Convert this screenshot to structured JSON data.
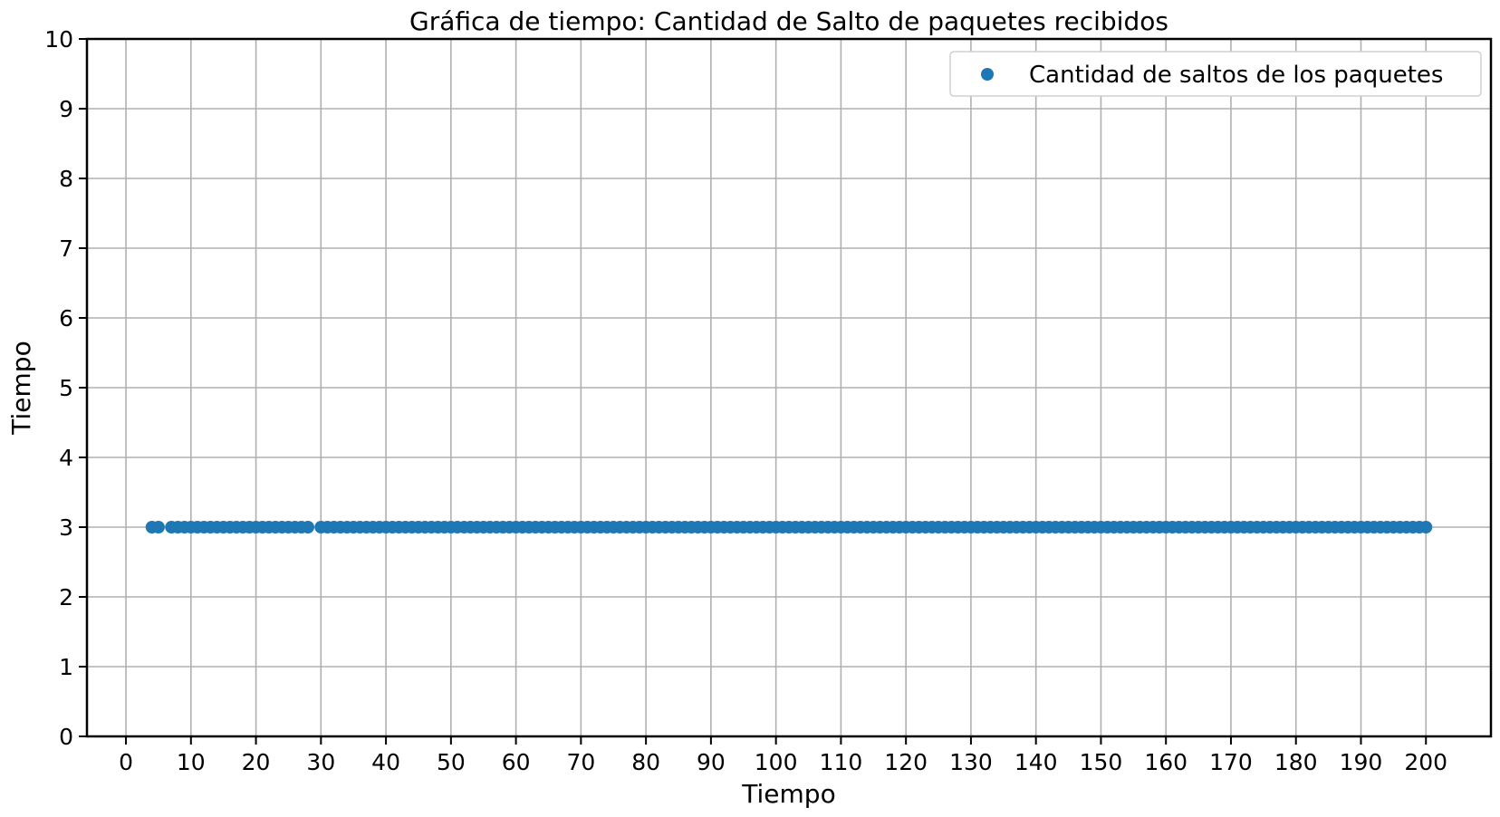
{
  "chart_data": {
    "type": "scatter",
    "title": "Gráfica de tiempo: Cantidad de Salto de paquetes recibidos",
    "xlabel": "Tiempo",
    "ylabel": "Tiempo",
    "xlim": [
      -6,
      210
    ],
    "ylim": [
      0,
      10
    ],
    "x_ticks": [
      "0",
      "10",
      "20",
      "30",
      "40",
      "50",
      "60",
      "70",
      "80",
      "90",
      "100",
      "110",
      "120",
      "130",
      "140",
      "150",
      "160",
      "170",
      "180",
      "190",
      "200"
    ],
    "y_ticks": [
      "0",
      "1",
      "2",
      "3",
      "4",
      "5",
      "6",
      "7",
      "8",
      "9",
      "10"
    ],
    "grid": true,
    "legend_position": "top-right",
    "series": [
      {
        "name": "Cantidad de saltos de los paquetes",
        "color": "#1f77b4",
        "x": [
          4,
          5,
          7,
          8,
          9,
          10,
          11,
          12,
          13,
          14,
          15,
          16,
          17,
          18,
          19,
          20,
          21,
          22,
          23,
          24,
          25,
          26,
          27,
          28,
          30,
          31,
          32,
          33,
          34,
          35,
          36,
          37,
          38,
          39,
          40,
          41,
          42,
          43,
          44,
          45,
          46,
          47,
          48,
          49,
          50,
          51,
          52,
          53,
          54,
          55,
          56,
          57,
          58,
          59,
          60,
          61,
          62,
          63,
          64,
          65,
          66,
          67,
          68,
          69,
          70,
          71,
          72,
          73,
          74,
          75,
          76,
          77,
          78,
          79,
          80,
          81,
          82,
          83,
          84,
          85,
          86,
          87,
          88,
          89,
          90,
          91,
          92,
          93,
          94,
          95,
          96,
          97,
          98,
          99,
          100,
          101,
          102,
          103,
          104,
          105,
          106,
          107,
          108,
          109,
          110,
          111,
          112,
          113,
          114,
          115,
          116,
          117,
          118,
          119,
          120,
          121,
          122,
          123,
          124,
          125,
          126,
          127,
          128,
          129,
          130,
          131,
          132,
          133,
          134,
          135,
          136,
          137,
          138,
          139,
          140,
          141,
          142,
          143,
          144,
          145,
          146,
          147,
          148,
          149,
          150,
          151,
          152,
          153,
          154,
          155,
          156,
          157,
          158,
          159,
          160,
          161,
          162,
          163,
          164,
          165,
          166,
          167,
          168,
          169,
          170,
          171,
          172,
          173,
          174,
          175,
          176,
          177,
          178,
          179,
          180,
          181,
          182,
          183,
          184,
          185,
          186,
          187,
          188,
          189,
          190,
          191,
          192,
          193,
          194,
          195,
          196,
          197,
          198,
          199,
          200
        ],
        "y_constant": 3
      }
    ]
  }
}
